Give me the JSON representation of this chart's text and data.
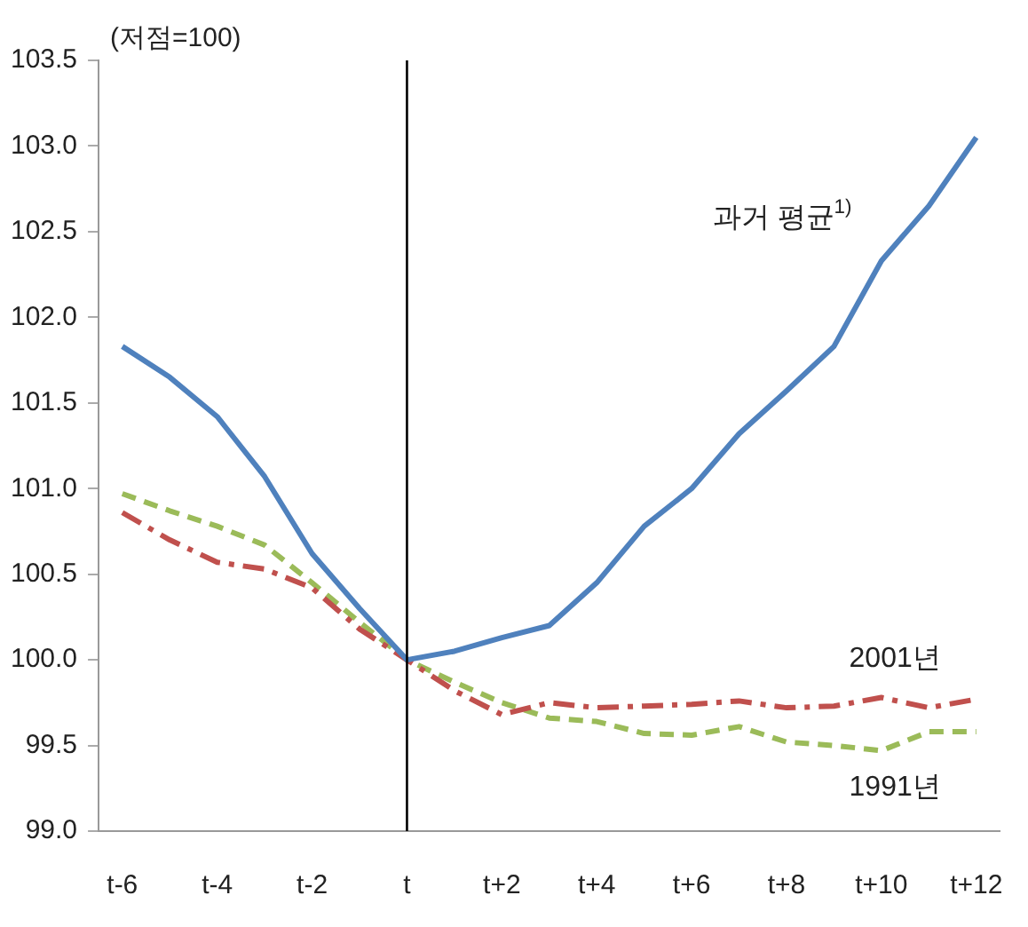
{
  "chart_data": {
    "type": "line",
    "ylabel": "(저점=100)",
    "categories": [
      "t-6",
      null,
      "t-4",
      null,
      "t-2",
      null,
      "t",
      null,
      "t+2",
      null,
      "t+4",
      null,
      "t+6",
      null,
      "t+8",
      null,
      "t+10",
      null,
      "t+12"
    ],
    "series": [
      {
        "name": "과거 평균$^{1)}$",
        "color": "#4f81bd",
        "line_style": "solid",
        "values": [
          101.83,
          101.65,
          101.42,
          101.07,
          100.62,
          100.3,
          100.0,
          100.05,
          100.13,
          100.2,
          100.45,
          100.78,
          101.0,
          101.32,
          101.57,
          101.83,
          102.33,
          102.65,
          103.05
        ]
      },
      {
        "name": "2001년",
        "color": "#c0504d",
        "line_style": "dotted",
        "values": [
          100.86,
          100.7,
          100.57,
          100.53,
          100.42,
          100.18,
          100.0,
          99.82,
          99.68,
          99.75,
          99.72,
          99.73,
          99.74,
          99.76,
          99.72,
          99.73,
          99.78,
          99.72,
          99.77
        ]
      },
      {
        "name": "1991년",
        "color": "#9bbb59",
        "line_style": "dashed",
        "values": [
          100.97,
          100.87,
          100.78,
          100.67,
          100.45,
          100.22,
          100.0,
          99.87,
          99.75,
          99.66,
          99.64,
          99.57,
          99.56,
          99.61,
          99.52,
          99.5,
          99.47,
          99.58,
          99.58
        ]
      }
    ],
    "ylim": [
      99.0,
      103.5
    ],
    "yticks": [
      {
        "value": 99.0,
        "label": "99.0"
      },
      {
        "value": 99.5,
        "label": "99.5"
      },
      {
        "value": 100.0,
        "label": "100.0"
      },
      {
        "value": 100.5,
        "label": "100.5"
      },
      {
        "value": 101.0,
        "label": "101.0"
      },
      {
        "value": 101.5,
        "label": "101.5"
      },
      {
        "value": 102.0,
        "label": "102.0"
      },
      {
        "value": 102.5,
        "label": "102.5"
      },
      {
        "value": 103.0,
        "label": "103.0"
      },
      {
        "value": 103.5,
        "label": "103.5"
      }
    ],
    "ref_lines": [
      {
        "axis": "x",
        "value": "t",
        "color": "#000000"
      }
    ],
    "grid": false,
    "legend": false,
    "marker": "none"
  }
}
